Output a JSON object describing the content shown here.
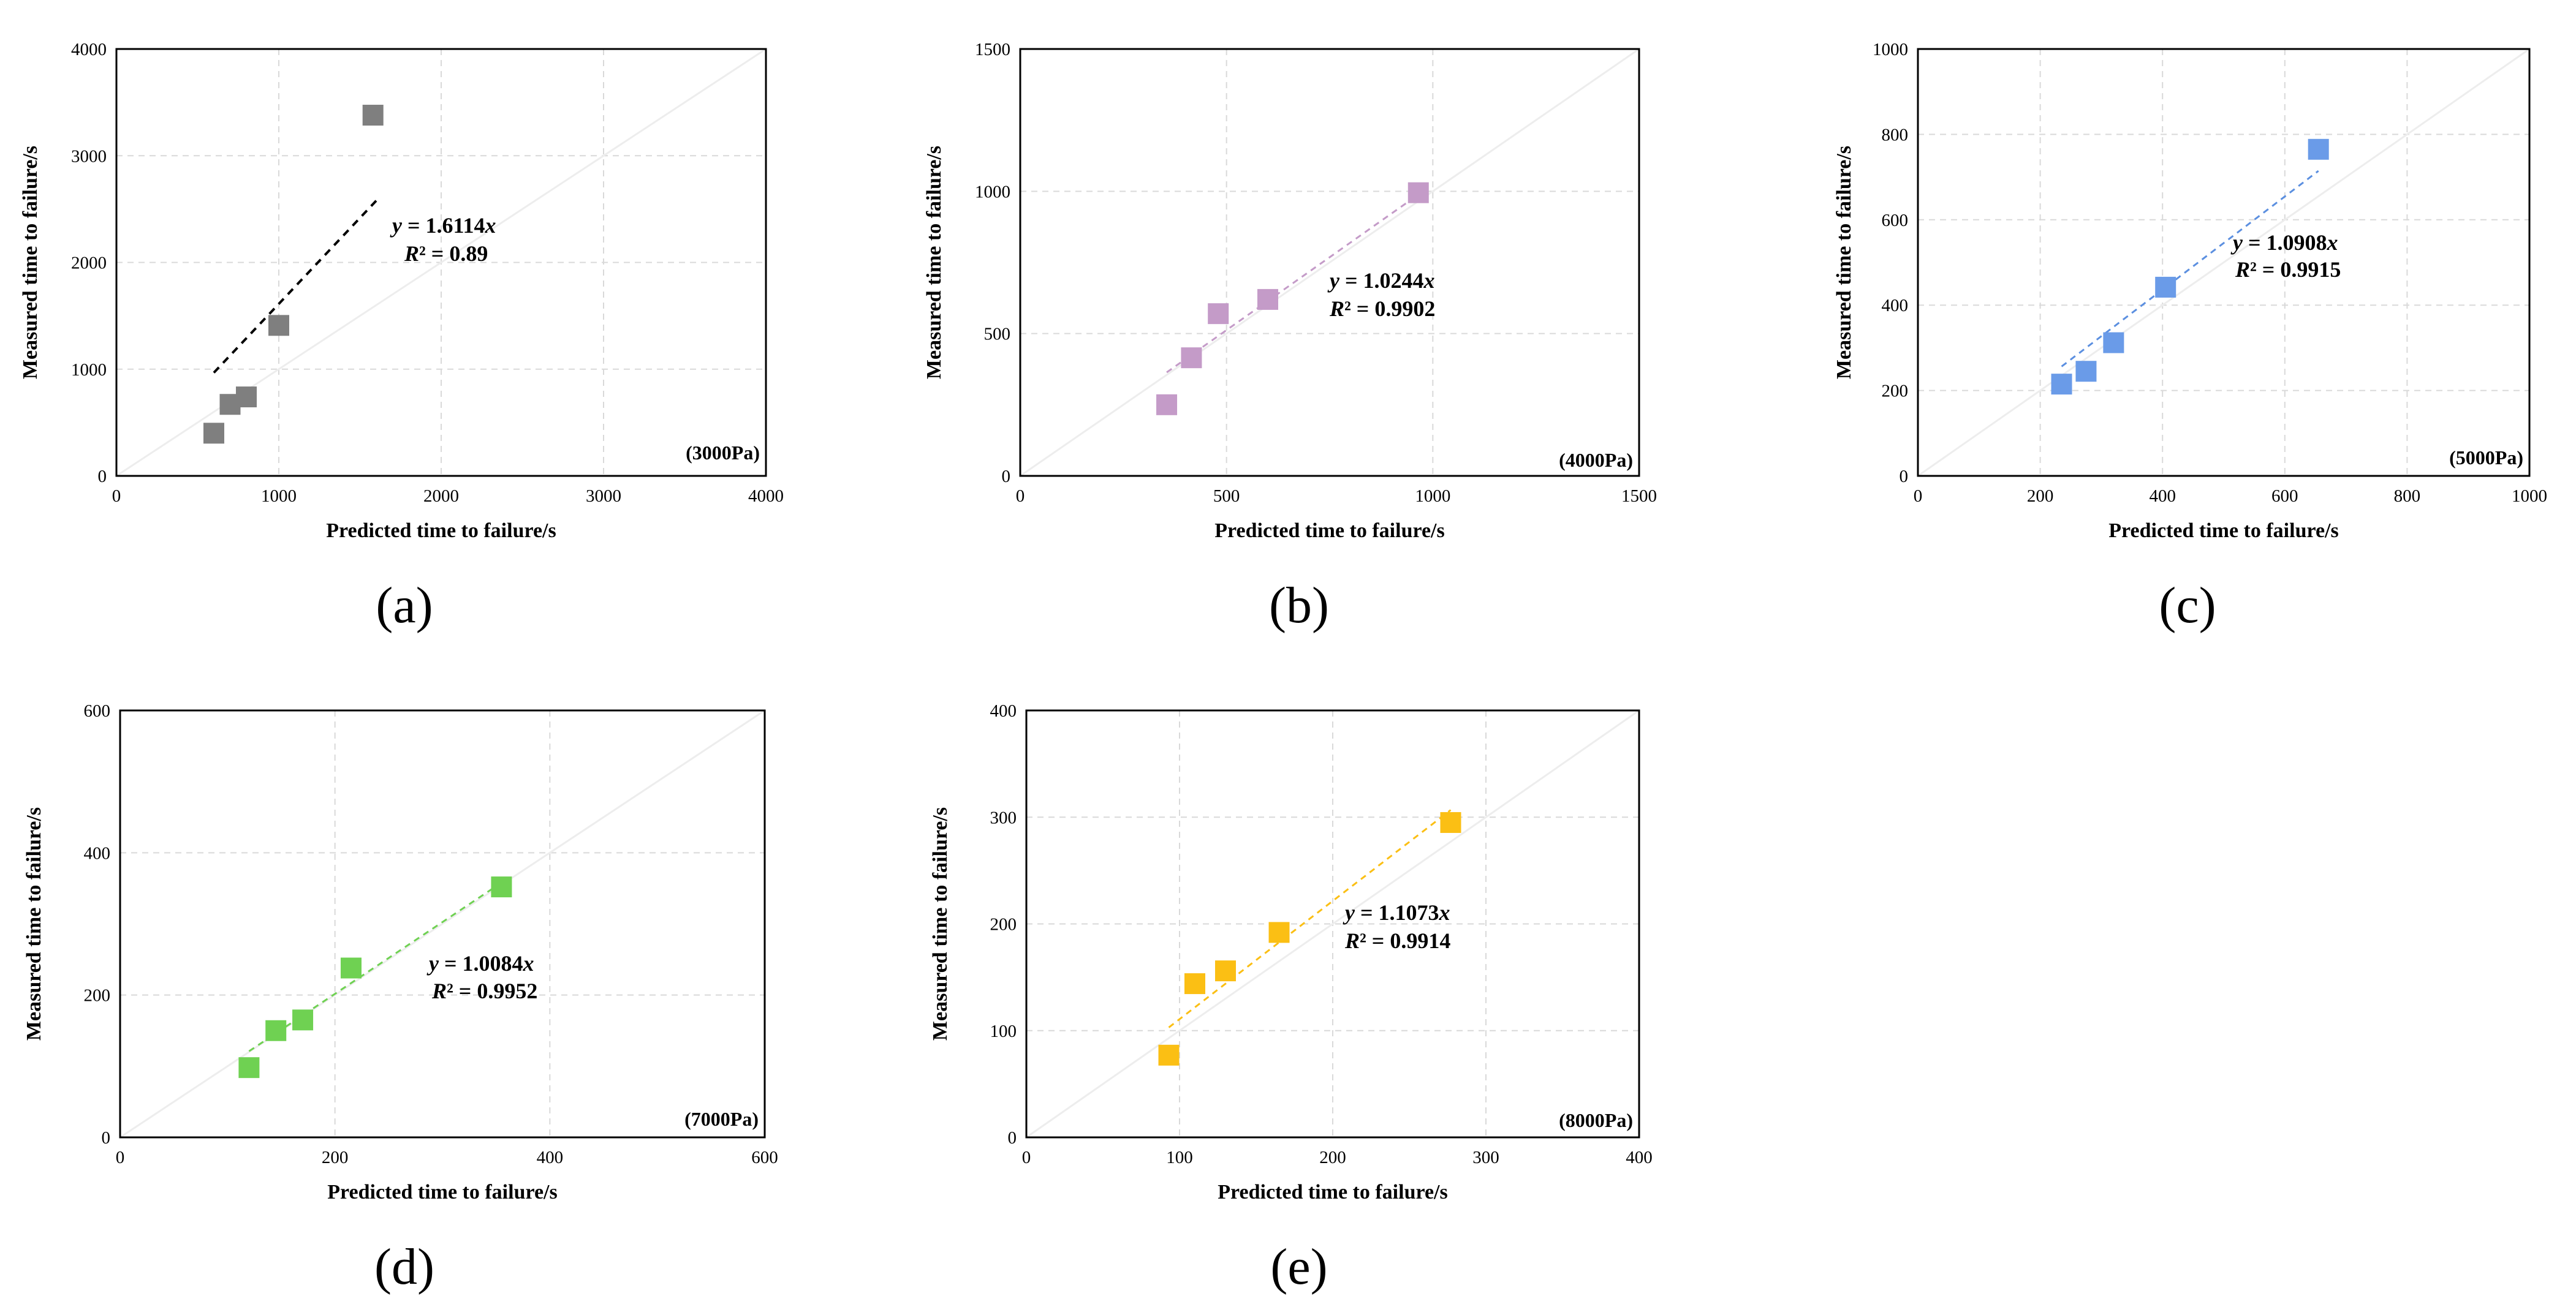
{
  "chart_data": [
    {
      "type": "scatter",
      "panel_label": "(a)",
      "pressure_label": "(3000Pa)",
      "xlabel": "Predicted time to failure/s",
      "ylabel": "Measured time to failure/s",
      "xlim": [
        0,
        4000
      ],
      "ylim": [
        0,
        4000
      ],
      "xticks": [
        "0",
        "1000",
        "2000",
        "3000",
        "4000"
      ],
      "yticks": [
        "0",
        "1000",
        "2000",
        "3000",
        "4000"
      ],
      "color": "#7f7f7f",
      "points": [
        [
          600,
          400
        ],
        [
          700,
          670
        ],
        [
          800,
          740
        ],
        [
          1000,
          1410
        ],
        [
          1580,
          3380
        ]
      ],
      "fit": {
        "slope": 1.6114,
        "x_range": [
          600,
          1600
        ],
        "equation_prefix": "y",
        "equation_rest": " = 1.6114",
        "equation_suffix": "x",
        "r2_prefix": "R",
        "r2_rest": "² = 0.89",
        "line_color": "#000000"
      }
    },
    {
      "type": "scatter",
      "panel_label": "(b)",
      "pressure_label": "(4000Pa)",
      "xlabel": "Predicted time to failure/s",
      "ylabel": "Measured time to failure/s",
      "xlim": [
        0,
        1500
      ],
      "ylim": [
        0,
        1500
      ],
      "xticks": [
        "0",
        "500",
        "1000",
        "1500"
      ],
      "yticks": [
        "0",
        "500",
        "1000",
        "1500"
      ],
      "color": "#c49bc8",
      "points": [
        [
          355,
          250
        ],
        [
          415,
          415
        ],
        [
          480,
          570
        ],
        [
          600,
          620
        ],
        [
          965,
          995
        ]
      ],
      "fit": {
        "slope": 1.0244,
        "x_range": [
          355,
          965
        ],
        "equation_prefix": "y",
        "equation_rest": " = 1.0244",
        "equation_suffix": "x",
        "r2_prefix": "R",
        "r2_rest": "² = 0.9902",
        "line_color": "#c49bc8"
      }
    },
    {
      "type": "scatter",
      "panel_label": "(c)",
      "pressure_label": "(5000Pa)",
      "xlabel": "Predicted time to failure/s",
      "ylabel": "Measured time to failure/s",
      "xlim": [
        0,
        1000
      ],
      "ylim": [
        0,
        1000
      ],
      "xticks": [
        "0",
        "200",
        "400",
        "600",
        "800",
        "1000"
      ],
      "yticks": [
        "0",
        "200",
        "400",
        "600",
        "800",
        "1000"
      ],
      "color": "#6a9be8",
      "points": [
        [
          235,
          215
        ],
        [
          275,
          245
        ],
        [
          320,
          312
        ],
        [
          405,
          442
        ],
        [
          655,
          765
        ]
      ],
      "fit": {
        "slope": 1.0908,
        "x_range": [
          235,
          655
        ],
        "equation_prefix": "y",
        "equation_rest": " = 1.0908",
        "equation_suffix": "x",
        "r2_prefix": "R",
        "r2_rest": "² = 0.9915",
        "line_color": "#5b8fe0"
      }
    },
    {
      "type": "scatter",
      "panel_label": "(d)",
      "pressure_label": "(7000Pa)",
      "xlabel": "Predicted time to failure/s",
      "ylabel": "Measured time to failure/s",
      "xlim": [
        0,
        600
      ],
      "ylim": [
        0,
        600
      ],
      "xticks": [
        "0",
        "200",
        "400",
        "600"
      ],
      "yticks": [
        "0",
        "200",
        "400",
        "600"
      ],
      "color": "#6fd152",
      "points": [
        [
          120,
          98
        ],
        [
          145,
          150
        ],
        [
          170,
          165
        ],
        [
          215,
          238
        ],
        [
          355,
          352
        ]
      ],
      "fit": {
        "slope": 1.0084,
        "x_range": [
          120,
          355
        ],
        "equation_prefix": "y",
        "equation_rest": " = 1.0084",
        "equation_suffix": "x",
        "r2_prefix": "R",
        "r2_rest": "² = 0.9952",
        "line_color": "#6fd152"
      }
    },
    {
      "type": "scatter",
      "panel_label": "(e)",
      "pressure_label": "(8000Pa)",
      "xlabel": "Predicted time to failure/s",
      "ylabel": "Measured time to failure/s",
      "xlim": [
        0,
        400
      ],
      "ylim": [
        0,
        400
      ],
      "xticks": [
        "0",
        "100",
        "200",
        "300",
        "400"
      ],
      "yticks": [
        "0",
        "100",
        "200",
        "300",
        "400"
      ],
      "color": "#fbbf14",
      "points": [
        [
          93,
          77
        ],
        [
          110,
          144
        ],
        [
          130,
          156
        ],
        [
          165,
          192
        ],
        [
          277,
          295
        ]
      ],
      "fit": {
        "slope": 1.1073,
        "x_range": [
          93,
          277
        ],
        "equation_prefix": "y",
        "equation_rest": " = 1.1073",
        "equation_suffix": "x",
        "r2_prefix": "R",
        "r2_rest": "² = 0.9914",
        "line_color": "#fbbf14"
      }
    }
  ]
}
